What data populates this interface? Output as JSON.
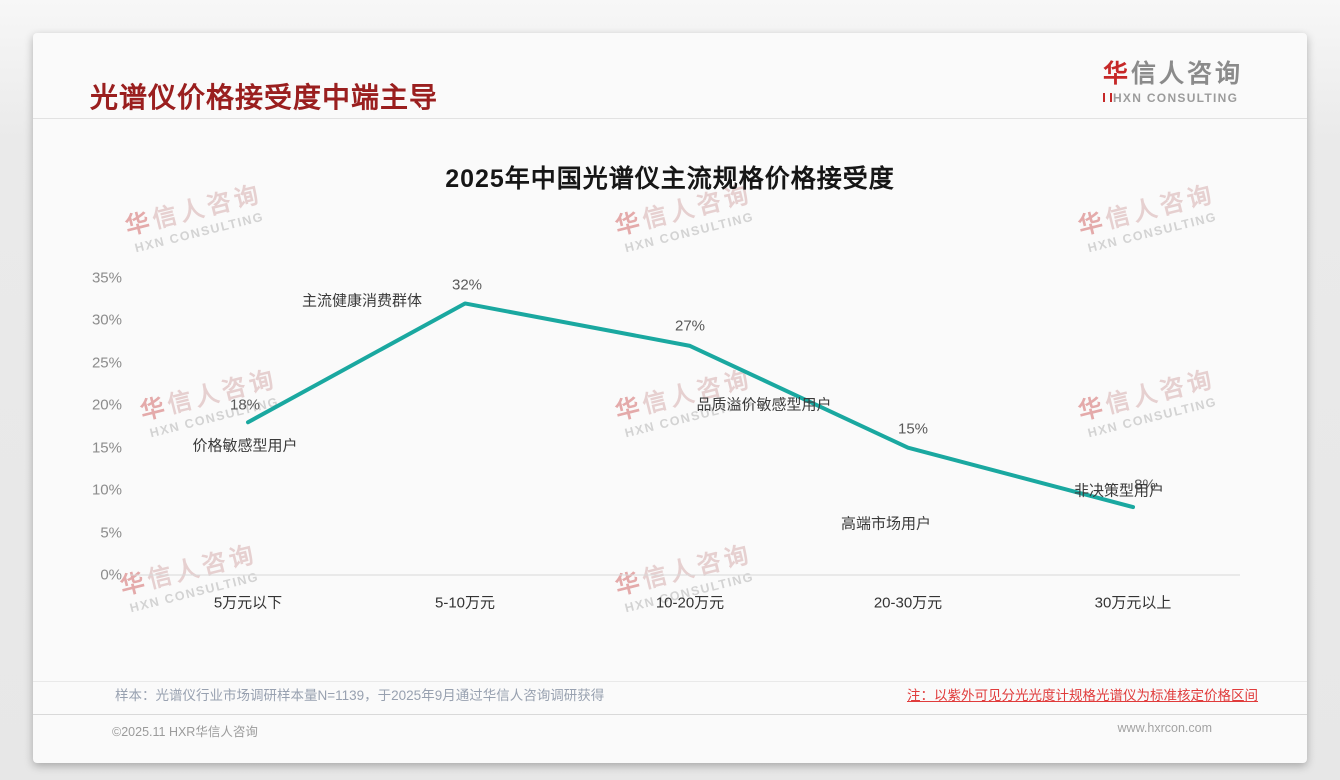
{
  "header": {
    "title": "光谱仪价格接受度中端主导"
  },
  "logo": {
    "zh_accent": "华",
    "zh_rest": "信人咨询",
    "en": "HXN CONSULTING"
  },
  "watermark": {
    "zh_accent": "华",
    "zh_rest": "信人咨询",
    "en": "HXN CONSULTING"
  },
  "footer": {
    "sample_note": "样本：光谱仪行业市场调研样本量N=1139，于2025年9月通过华信人咨询调研获得",
    "red_note": "注：以紫外可见分光光度计规格光谱仪为标准核定价格区间",
    "copyright": "©2025.11 HXR华信人咨询",
    "website": "www.hxrcon.com"
  },
  "chart_data": {
    "type": "line",
    "title": "2025年中国光谱仪主流规格价格接受度",
    "categories": [
      "5万元以下",
      "5-10万元",
      "10-20万元",
      "20-30万元",
      "30万元以上"
    ],
    "values": [
      18,
      32,
      27,
      15,
      8
    ],
    "value_labels": [
      "18%",
      "32%",
      "27%",
      "15%",
      "8%"
    ],
    "annotations": [
      "价格敏感型用户",
      "主流健康消费群体",
      "品质溢价敏感型用户",
      "高端市场用户",
      "非决策型用户"
    ],
    "yticks": [
      "35%",
      "30%",
      "25%",
      "20%",
      "15%",
      "10%",
      "5%",
      "0%"
    ],
    "ylim": [
      0,
      35
    ],
    "xlabel": "",
    "ylabel": "",
    "grid": false,
    "legend": "none",
    "line_color": "#1aa8a0"
  }
}
